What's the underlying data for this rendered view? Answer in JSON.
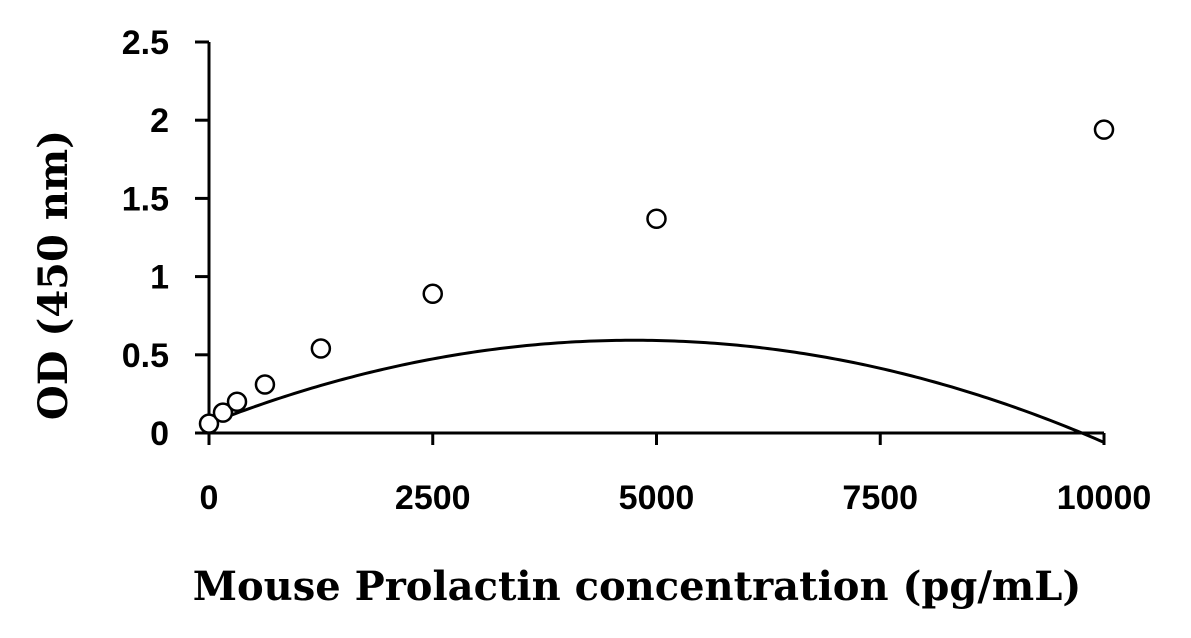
{
  "chart_data": {
    "type": "scatter",
    "xlabel": "Mouse Prolactin concentration (pg/mL)",
    "ylabel": "OD (450 nm)",
    "xlim": [
      0,
      10000
    ],
    "ylim": [
      0,
      2.5
    ],
    "x_ticks": [
      0,
      2500,
      5000,
      7500,
      10000
    ],
    "x_tick_labels": [
      "0",
      "2500",
      "5000",
      "7500",
      "10000"
    ],
    "y_ticks": [
      0,
      0.5,
      1,
      1.5,
      2,
      2.5
    ],
    "y_tick_labels": [
      "0",
      "0.5",
      "1",
      "1.5",
      "2",
      "2.5"
    ],
    "grid": false,
    "legend": "none",
    "series": [
      {
        "points": [
          {
            "x": 0,
            "y": 0.06
          },
          {
            "x": 156,
            "y": 0.13
          },
          {
            "x": 313,
            "y": 0.2
          },
          {
            "x": 625,
            "y": 0.31
          },
          {
            "x": 1250,
            "y": 0.54
          },
          {
            "x": 2500,
            "y": 0.89
          },
          {
            "x": 5000,
            "y": 1.37
          },
          {
            "x": 10000,
            "y": 1.94
          }
        ],
        "marker": "open-circle",
        "color": "#000000"
      }
    ],
    "fit_curve": {
      "type": "polynomial",
      "coefficients": [
        0.06,
        0.0002246,
        -2.366e-08
      ],
      "color": "#000000"
    }
  }
}
